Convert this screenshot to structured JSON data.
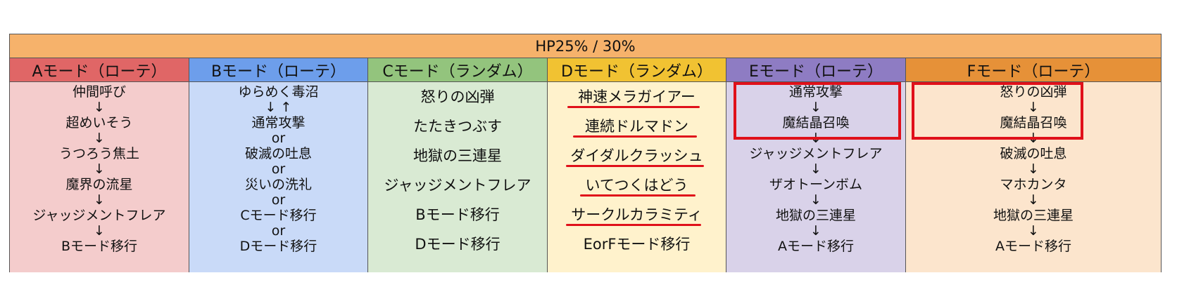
{
  "header": {
    "title": "HP25% / 30%",
    "color": "#f6b26b"
  },
  "columns": [
    {
      "title": "Aモード（ローテ）",
      "head_color": "#e06666",
      "body_color": "#f4cccc",
      "lines": [
        "仲間呼び",
        "↓",
        "超めいそう",
        "↓",
        "うつろう焦土",
        "↓",
        "魔界の流星",
        "↓",
        "ジャッジメントフレア",
        "↓",
        "Bモード移行"
      ]
    },
    {
      "title": "Bモード（ローテ）",
      "head_color": "#6d9eeb",
      "body_color": "#c9daf8",
      "lines": [
        "ゆらめく毒沼",
        "↓ ↑",
        "通常攻撃",
        "or",
        "破滅の吐息",
        "or",
        "災いの洗礼",
        "or",
        "Cモード移行",
        "or",
        "Dモード移行"
      ]
    },
    {
      "title": "Cモード（ランダム）",
      "head_color": "#93c47d",
      "body_color": "#d9ead3",
      "lines": [
        "怒りの凶弾",
        "たたきつぶす",
        "地獄の三連星",
        "ジャッジメントフレア",
        "Bモード移行",
        "Dモード移行"
      ]
    },
    {
      "title": "Dモード（ランダム）",
      "head_color": "#f1c232",
      "body_color": "#fff2cc",
      "lines": [
        "神速メラガイアー",
        "連続ドルマドン",
        "ダイダルクラッシュ",
        "いてつくはどう",
        "サークルカラミティ",
        "EorFモード移行"
      ]
    },
    {
      "title": "Eモード（ローテ）",
      "head_color": "#8e7cc3",
      "body_color": "#d9d2e9",
      "lines": [
        "通常攻撃",
        "↓",
        "魔結晶召喚",
        "↓",
        "ジャッジメントフレア",
        "↓",
        "ザオトーンボム",
        "↓",
        "地獄の三連星",
        "↓",
        "Aモード移行"
      ]
    },
    {
      "title": "Fモード（ローテ）",
      "head_color": "#e69138",
      "body_color": "#fce5cd",
      "lines": [
        "怒りの凶弾",
        "↓",
        "魔結晶召喚",
        "↓",
        "破滅の吐息",
        "↓",
        "マホカンタ",
        "↓",
        "地獄の三連星",
        "↓",
        "Aモード移行"
      ]
    }
  ],
  "accent_color": "#e0101a"
}
